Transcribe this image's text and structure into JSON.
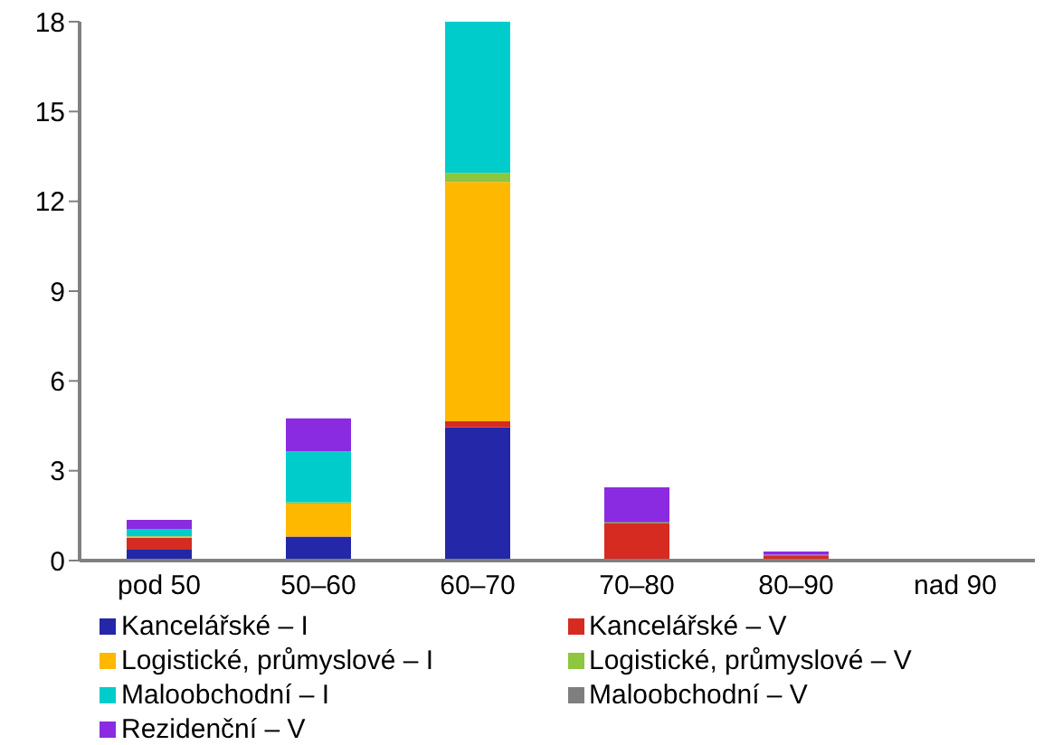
{
  "chart_data": {
    "type": "bar",
    "stacked": true,
    "categories": [
      "pod 50",
      "50–60",
      "60–70",
      "70–80",
      "80–90",
      "nad 90"
    ],
    "series": [
      {
        "name": "Kancelářské – I",
        "color": "#2327a8",
        "values": [
          0.36,
          0.8,
          4.45,
          0,
          0,
          0
        ]
      },
      {
        "name": "Kancelářské – V",
        "color": "#d62b21",
        "values": [
          0.4,
          0,
          0.2,
          1.25,
          0.15,
          0
        ]
      },
      {
        "name": "Logistické, průmyslové – I",
        "color": "#ffb800",
        "values": [
          0.05,
          1.1,
          8.0,
          0,
          0,
          0
        ]
      },
      {
        "name": "Logistické, průmyslové – V",
        "color": "#8dc63f",
        "values": [
          0,
          0.05,
          0.3,
          0,
          0,
          0
        ]
      },
      {
        "name": "Maloobchodní – I",
        "color": "#00cccc",
        "values": [
          0.25,
          1.7,
          5.05,
          0,
          0,
          0
        ]
      },
      {
        "name": "Maloobchodní – V",
        "color": "#7f7f7f",
        "values": [
          0,
          0,
          0,
          0.05,
          0.05,
          0
        ]
      },
      {
        "name": "Rezidenční – V",
        "color": "#8a2be2",
        "values": [
          0.3,
          1.1,
          0,
          1.15,
          0.1,
          0.05
        ]
      }
    ],
    "ylim": [
      0,
      18
    ],
    "yticks": [
      0,
      3,
      6,
      9,
      12,
      15,
      18
    ],
    "grid": false,
    "legend": "bottom"
  }
}
